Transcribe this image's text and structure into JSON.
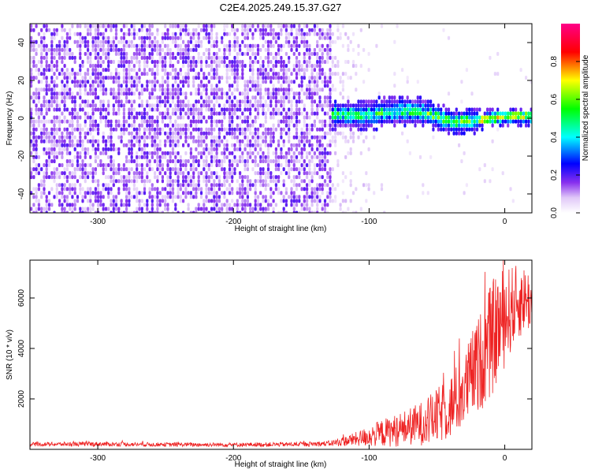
{
  "title": "C2E4.2025.249.15.37.G27",
  "chart_data": [
    {
      "type": "heatmap",
      "xlabel": "Height of straight line (km)",
      "ylabel": "Frequency (Hz)",
      "xlim": [
        -350,
        20
      ],
      "ylim": [
        -50,
        50
      ],
      "xticks": [
        -300,
        -200,
        -100,
        0
      ],
      "yticks": [
        -40,
        -20,
        0,
        20,
        40
      ],
      "colorbar": {
        "label": "Normalized spectral amplitude",
        "range": [
          0.0,
          1.0
        ],
        "ticks": [
          0.0,
          0.2,
          0.4,
          0.6,
          0.8
        ],
        "tick_labels": [
          "0.0",
          "0.2",
          "0.4",
          "0.6",
          "0.8"
        ]
      },
      "regions": [
        {
          "name": "noise",
          "x": [
            -350,
            -128
          ],
          "amplitude": [
            0.05,
            0.2
          ]
        },
        {
          "name": "fade",
          "x": [
            -128,
            -95
          ],
          "amplitude": [
            0.0,
            0.08
          ]
        },
        {
          "name": "signal-band",
          "x": [
            -128,
            20
          ],
          "frequency_center": 0,
          "amplitude": [
            0.2,
            0.95
          ]
        }
      ],
      "ridge": [
        {
          "x": -128,
          "f": 2
        },
        {
          "x": -100,
          "f": 2
        },
        {
          "x": -80,
          "f": 4
        },
        {
          "x": -60,
          "f": 3
        },
        {
          "x": -40,
          "f": -2
        },
        {
          "x": -20,
          "f": -1
        },
        {
          "x": 0,
          "f": 1
        },
        {
          "x": 20,
          "f": 1
        }
      ]
    },
    {
      "type": "line",
      "xlabel": "Height of straight line (km)",
      "ylabel": "SNR (10 * v/v)",
      "xlim": [
        -350,
        20
      ],
      "ylim": [
        0,
        7500
      ],
      "xticks": [
        -300,
        -200,
        -100,
        0
      ],
      "yticks": [
        2000,
        4000,
        6000
      ],
      "series": [
        {
          "name": "SNR",
          "color": "#ee2222",
          "x": [
            -350,
            -300,
            -250,
            -200,
            -150,
            -130,
            -120,
            -110,
            -100,
            -90,
            -80,
            -70,
            -60,
            -50,
            -40,
            -30,
            -25,
            -20,
            -15,
            -10,
            -5,
            0,
            5,
            10,
            15,
            20
          ],
          "mean": [
            200,
            210,
            190,
            185,
            200,
            230,
            300,
            400,
            520,
            650,
            750,
            900,
            1050,
            1300,
            1700,
            2300,
            2900,
            3300,
            3800,
            4300,
            4900,
            5200,
            5600,
            5800,
            6000,
            5800
          ],
          "spread": [
            80,
            90,
            80,
            80,
            90,
            110,
            180,
            280,
            420,
            550,
            650,
            750,
            900,
            1100,
            1300,
            1500,
            1700,
            1900,
            2100,
            2300,
            2200,
            2000,
            1700,
            1500,
            1300,
            1200
          ]
        }
      ]
    }
  ]
}
